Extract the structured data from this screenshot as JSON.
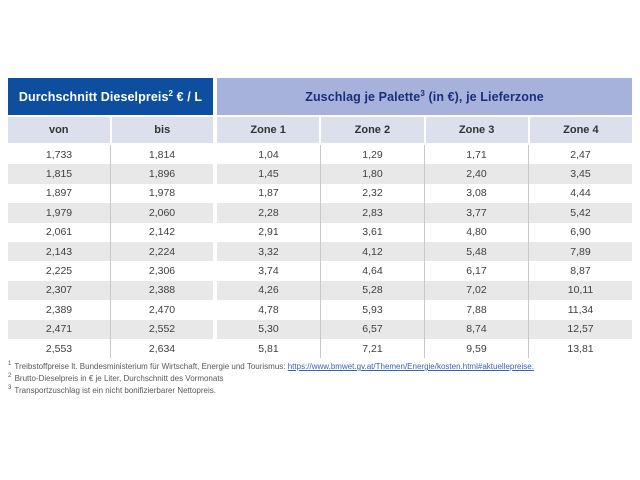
{
  "table": {
    "header_left": {
      "pre": "Durchschnitt Dieselpreis",
      "sup": "2",
      "post": " € / L"
    },
    "header_right": {
      "pre": "Zuschlag je Palette",
      "sup": "3",
      "post": " (in €), je Lieferzone"
    },
    "columns_left": [
      "von",
      "bis"
    ],
    "columns_right": [
      "Zone 1",
      "Zone 2",
      "Zone 3",
      "Zone 4"
    ],
    "rows": [
      [
        "1,733",
        "1,814",
        "1,04",
        "1,29",
        "1,71",
        "2,47"
      ],
      [
        "1,815",
        "1,896",
        "1,45",
        "1,80",
        "2,40",
        "3,45"
      ],
      [
        "1,897",
        "1,978",
        "1,87",
        "2,32",
        "3,08",
        "4,44"
      ],
      [
        "1,979",
        "2,060",
        "2,28",
        "2,83",
        "3,77",
        "5,42"
      ],
      [
        "2,061",
        "2,142",
        "2,91",
        "3,61",
        "4,80",
        "6,90"
      ],
      [
        "2,143",
        "2,224",
        "3,32",
        "4,12",
        "5,48",
        "7,89"
      ],
      [
        "2,225",
        "2,306",
        "3,74",
        "4,64",
        "6,17",
        "8,87"
      ],
      [
        "2,307",
        "2,388",
        "4,26",
        "5,28",
        "7,02",
        "10,11"
      ],
      [
        "2,389",
        "2,470",
        "4,78",
        "5,93",
        "7,88",
        "11,34"
      ],
      [
        "2,471",
        "2,552",
        "5,30",
        "6,57",
        "8,74",
        "12,57"
      ],
      [
        "2,553",
        "2,634",
        "5,81",
        "7,21",
        "9,59",
        "13,81"
      ]
    ]
  },
  "footnotes": [
    {
      "sup": "1",
      "text": "Treibstoffpreise lt. Bundesministerium für Wirtschaft, Energie und Tourismus: ",
      "link": "https://www.bmwet.gv.at/Themen/Energie/kosten.html#aktuellepreise."
    },
    {
      "sup": "2",
      "text": "Brutto-Dieselpreis in € je Liter, Durchschnitt des Vormonats",
      "link": null
    },
    {
      "sup": "3",
      "text": "Transportzuschlag ist ein nicht bonifizierbarer Nettopreis.",
      "link": null
    }
  ],
  "colors": {
    "header_left_bg": "#0d4f9e",
    "header_right_bg": "#a6b2dc",
    "header_right_text": "#1a2f7a",
    "subheader_bg": "#dcdfec",
    "stripe": "#e8e8e8",
    "link": "#3a64ad"
  }
}
